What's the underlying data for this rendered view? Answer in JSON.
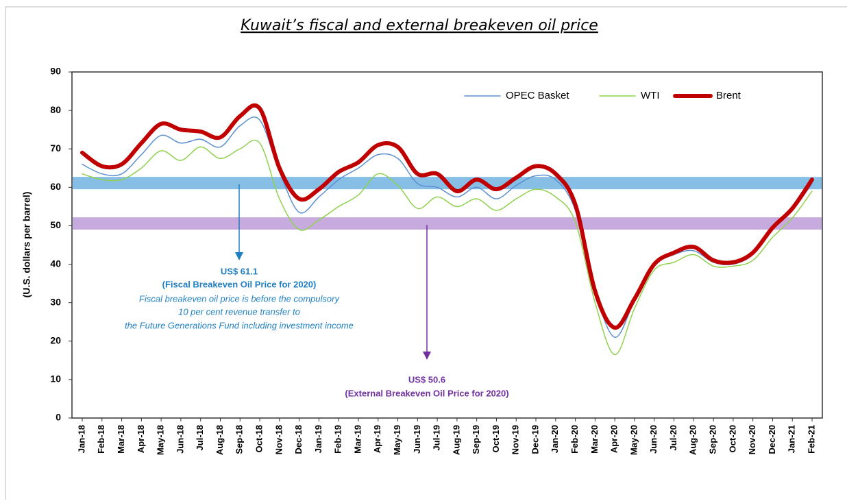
{
  "chart_data": {
    "type": "line",
    "title": "Kuwait’s fiscal and external breakeven oil price",
    "y_label": "(U.S. dollars per barrel)",
    "categories": [
      "Jan-18",
      "Feb-18",
      "Mar-18",
      "Apr-18",
      "May-18",
      "Jun-18",
      "Jul-18",
      "Aug-18",
      "Sep-18",
      "Oct-18",
      "Nov-18",
      "Dec-18",
      "Jan-19",
      "Feb-19",
      "Mar-19",
      "Apr-19",
      "May-19",
      "Jun-19",
      "Jul-19",
      "Aug-19",
      "Sep-19",
      "Oct-19",
      "Nov-19",
      "Dec-19",
      "Jan-20",
      "Feb-20",
      "Mar-20",
      "Apr-20",
      "May-20",
      "Jun-20",
      "Jul-20",
      "Aug-20",
      "Sep-20",
      "Oct-20",
      "Nov-20",
      "Dec-20",
      "Jan-21",
      "Feb-21"
    ],
    "series": [
      {
        "name": "OPEC Basket",
        "color": "#5b8fd1",
        "width": 1.5,
        "values": [
          66,
          63.5,
          63.5,
          68.5,
          73.5,
          71.5,
          72.5,
          70.5,
          76,
          77.5,
          64,
          53.5,
          57.5,
          62,
          65,
          68.5,
          67.5,
          61,
          60,
          57.5,
          60,
          57,
          60.5,
          63,
          62,
          54,
          33,
          21,
          30.5,
          39.5,
          42.5,
          43.5,
          40.5,
          40,
          42.5,
          49,
          54,
          61
        ]
      },
      {
        "name": "WTI",
        "color": "#8fd14f",
        "width": 1.5,
        "values": [
          63.5,
          62,
          62,
          65,
          69.5,
          67,
          70.5,
          67.5,
          70,
          71.5,
          57,
          49,
          51.5,
          55,
          58,
          63.5,
          60.5,
          54.5,
          57.5,
          55,
          57,
          54,
          57,
          59.5,
          57.5,
          51,
          30,
          16.5,
          28.5,
          38.5,
          40.5,
          42.5,
          39.5,
          39.5,
          41,
          47,
          52,
          59
        ]
      },
      {
        "name": "Brent",
        "color": "#c00000",
        "width": 6,
        "values": [
          69,
          65.5,
          66,
          71.5,
          76.5,
          75,
          74.5,
          73,
          78.5,
          80.5,
          65,
          57,
          59.5,
          64,
          66.5,
          71,
          70.5,
          63.5,
          63.5,
          59,
          62,
          59.5,
          62.5,
          65.5,
          63.5,
          55.5,
          33,
          23.5,
          31,
          40,
          43,
          44.5,
          41,
          40.5,
          43,
          49.5,
          54.5,
          62
        ]
      }
    ],
    "ylim": [
      0,
      90
    ],
    "yticks": [
      0,
      10,
      20,
      30,
      40,
      50,
      60,
      70,
      80,
      90
    ],
    "annotations": [
      {
        "value": 61.1,
        "color": "#1f7fc4",
        "band_color": "#5fa8dc",
        "lines": [
          "US$ 61.1",
          "(Fiscal Breakeven Oil Price for 2020)",
          "Fiscal breakeven oil price is before the compulsory",
          "10 per cent revenue transfer to",
          "the Future Generations Fund including investment income"
        ]
      },
      {
        "value": 50.6,
        "color": "#7030a0",
        "band_color": "#b48fd3",
        "lines": [
          "US$ 50.6",
          "(External Breakeven Oil Price for 2020)"
        ]
      }
    ]
  }
}
